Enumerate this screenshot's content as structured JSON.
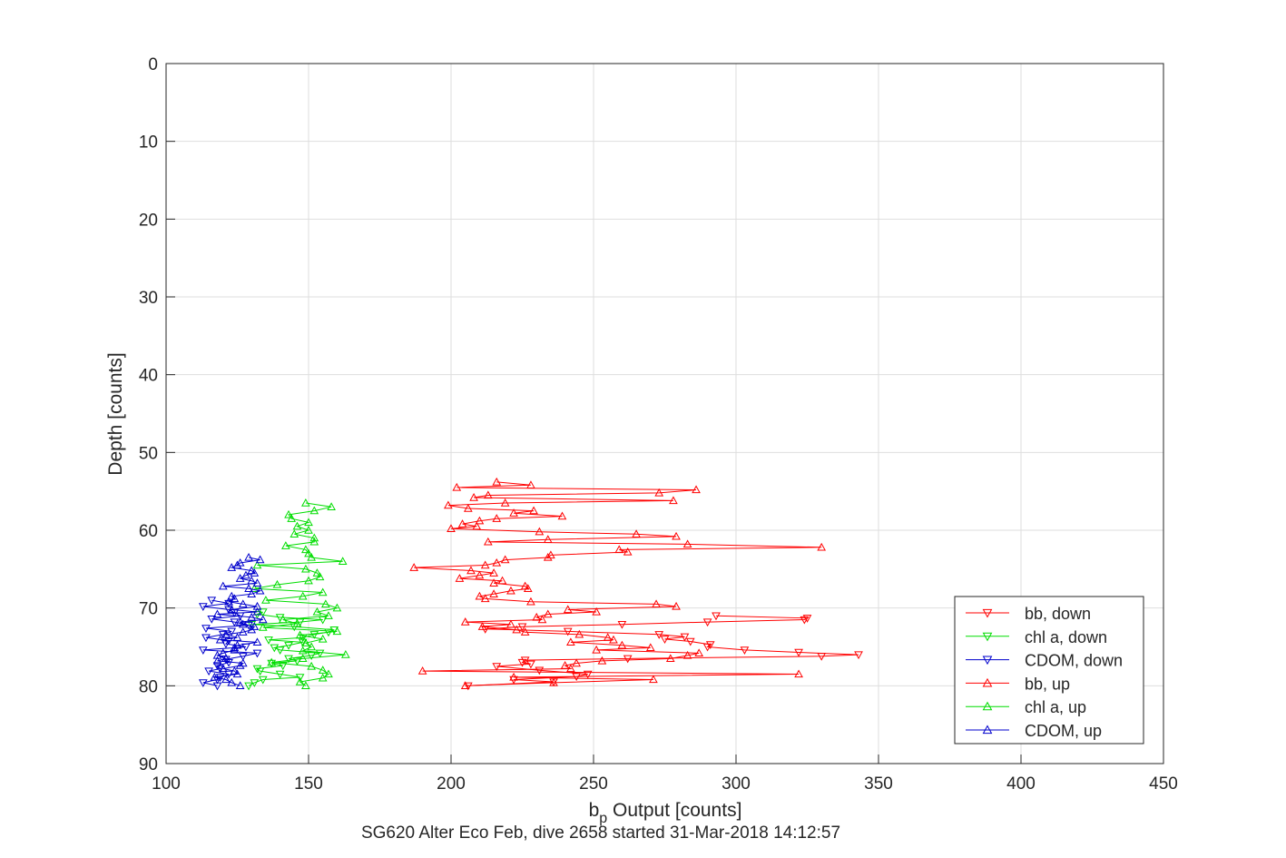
{
  "chart_data": {
    "type": "line",
    "title": "",
    "caption": "SG620 Alter Eco Feb, dive 2658 started 31-Mar-2018 14:12:57",
    "xlabel_main": "b",
    "xlabel_sub": "p",
    "xlabel_rest": " Output [counts]",
    "ylabel": "Depth [counts]",
    "xlim": [
      100,
      450
    ],
    "ylim": [
      0,
      90
    ],
    "y_reversed": true,
    "grid": true,
    "legend_position": "lower-right",
    "x_ticks": [
      "100",
      "150",
      "200",
      "250",
      "300",
      "350",
      "400",
      "450"
    ],
    "y_ticks": [
      "0",
      "10",
      "20",
      "30",
      "40",
      "50",
      "60",
      "70",
      "80",
      "90"
    ],
    "series": [
      {
        "name": "bb, down",
        "color": "#ff0000",
        "marker": "triangle-down",
        "x": [
          206,
          236,
          222,
          244,
          248,
          231,
          216,
          228,
          225,
          226,
          262,
          330,
          343,
          322,
          303,
          290,
          291,
          284,
          275,
          282,
          273,
          241,
          212,
          225,
          260,
          290,
          324,
          325,
          293
        ],
        "y": [
          80.0,
          79.5,
          79.2,
          78.8,
          78.5,
          78.0,
          77.5,
          77.2,
          77.0,
          76.7,
          76.5,
          76.2,
          76.0,
          75.7,
          75.4,
          75.0,
          74.7,
          74.3,
          74.0,
          73.7,
          73.4,
          73.0,
          72.7,
          72.4,
          72.1,
          71.8,
          71.5,
          71.3,
          71.0
        ]
      },
      {
        "name": "chl a, down",
        "color": "#00dd00",
        "marker": "triangle-down",
        "x": [
          129,
          131,
          134,
          147,
          140,
          133,
          132,
          141,
          137,
          146,
          143,
          151,
          154,
          140,
          138,
          143,
          148,
          136,
          148,
          152,
          157,
          159,
          145,
          130,
          147,
          155,
          140,
          132,
          134
        ],
        "y": [
          80.0,
          79.6,
          79.2,
          78.9,
          78.5,
          78.1,
          77.8,
          77.4,
          77.1,
          76.8,
          76.5,
          76.1,
          75.8,
          75.4,
          75.1,
          74.8,
          74.4,
          74.1,
          73.8,
          73.4,
          73.1,
          72.8,
          72.4,
          72.1,
          71.8,
          71.5,
          71.2,
          70.8,
          70.5
        ]
      },
      {
        "name": "CDOM, down",
        "color": "#0000cc",
        "marker": "triangle-down",
        "x": [
          118,
          113,
          118,
          119,
          122,
          115,
          119,
          118,
          122,
          121,
          127,
          132,
          113,
          128,
          121,
          122,
          114,
          120,
          123,
          114,
          129,
          124,
          116,
          126,
          124,
          122,
          113,
          122,
          116
        ],
        "y": [
          80.0,
          79.6,
          79.2,
          78.9,
          78.5,
          78.1,
          77.8,
          77.4,
          77.0,
          76.6,
          76.2,
          75.8,
          75.4,
          75.0,
          74.6,
          74.2,
          73.8,
          73.4,
          73.0,
          72.6,
          72.2,
          71.8,
          71.4,
          71.0,
          70.6,
          70.2,
          69.8,
          69.4,
          69.0
        ]
      },
      {
        "name": "bb, up",
        "color": "#ff0000",
        "marker": "triangle-up",
        "x": [
          205,
          236,
          271,
          222,
          322,
          190,
          242,
          240,
          244,
          253,
          277,
          283,
          287,
          251,
          270,
          260,
          242,
          257,
          255,
          245,
          226,
          223,
          211,
          221,
          205,
          232,
          230,
          234,
          251,
          241,
          279,
          272,
          228,
          212,
          210,
          215,
          221,
          227,
          226,
          215,
          218,
          203,
          210,
          215,
          207,
          187,
          212,
          216,
          219,
          234,
          235,
          262,
          259,
          330,
          283,
          213,
          234,
          279,
          265,
          231,
          200,
          209,
          204,
          210,
          216,
          239,
          222,
          229,
          206,
          199,
          219,
          278,
          208,
          213,
          273,
          286,
          202,
          228,
          216
        ],
        "y": [
          80.0,
          79.6,
          79.2,
          78.9,
          78.5,
          78.1,
          77.8,
          77.4,
          77.1,
          76.8,
          76.5,
          76.1,
          75.8,
          75.4,
          75.1,
          74.8,
          74.4,
          74.1,
          73.8,
          73.4,
          73.1,
          72.8,
          72.4,
          72.1,
          71.8,
          71.5,
          71.2,
          70.8,
          70.5,
          70.2,
          69.8,
          69.5,
          69.2,
          68.8,
          68.5,
          68.2,
          67.8,
          67.5,
          67.2,
          66.8,
          66.5,
          66.2,
          65.8,
          65.5,
          65.2,
          64.8,
          64.5,
          64.2,
          63.8,
          63.5,
          63.2,
          62.8,
          62.5,
          62.2,
          61.8,
          61.5,
          61.2,
          60.8,
          60.5,
          60.2,
          59.8,
          59.5,
          59.2,
          58.8,
          58.5,
          58.2,
          57.8,
          57.5,
          57.2,
          56.8,
          56.5,
          56.2,
          55.8,
          55.5,
          55.2,
          54.8,
          54.5,
          54.2,
          53.8
        ]
      },
      {
        "name": "chl a, up",
        "color": "#00dd00",
        "marker": "triangle-up",
        "x": [
          149,
          147,
          155,
          157,
          155,
          151,
          137,
          148,
          163,
          148,
          151,
          149,
          155,
          147,
          160,
          134,
          146,
          141,
          157,
          153,
          160,
          156,
          135,
          148,
          155,
          131,
          139,
          150,
          154,
          153,
          149,
          132,
          162,
          151,
          150,
          149,
          142,
          152,
          152,
          145,
          150,
          146,
          150,
          144,
          143,
          152,
          158,
          149
        ],
        "y": [
          80.0,
          79.5,
          79.0,
          78.5,
          78.0,
          77.5,
          77.0,
          76.5,
          76.0,
          75.5,
          75.0,
          74.5,
          74.0,
          73.5,
          73.0,
          72.5,
          72.0,
          71.5,
          71.0,
          70.5,
          70.0,
          69.5,
          69.0,
          68.5,
          68.0,
          67.5,
          67.0,
          66.5,
          66.0,
          65.5,
          65.0,
          64.5,
          64.0,
          63.5,
          63.0,
          62.5,
          62.0,
          61.5,
          61.0,
          60.5,
          60.0,
          59.5,
          59.0,
          58.5,
          58.0,
          57.5,
          57.0,
          56.5
        ]
      },
      {
        "name": "CDOM, up",
        "color": "#0000cc",
        "marker": "triangle-up",
        "x": [
          126,
          123,
          121,
          117,
          125,
          124,
          120,
          126,
          127,
          118,
          121,
          118,
          120,
          124,
          124,
          125,
          132,
          119,
          125,
          121,
          127,
          130,
          131,
          127,
          126,
          134,
          130,
          118,
          132,
          123,
          132,
          127,
          122,
          124,
          123,
          130,
          133,
          129,
          120,
          132,
          130,
          126,
          128,
          131,
          130,
          123,
          125,
          126,
          133,
          129
        ],
        "y": [
          80.0,
          79.6,
          79.2,
          78.9,
          78.5,
          78.1,
          77.8,
          77.4,
          77.1,
          76.8,
          76.5,
          76.1,
          75.8,
          75.4,
          75.1,
          74.8,
          74.4,
          74.1,
          73.8,
          73.4,
          73.1,
          72.8,
          72.4,
          72.1,
          71.8,
          71.5,
          71.2,
          70.8,
          70.5,
          70.2,
          69.8,
          69.5,
          69.2,
          68.8,
          68.5,
          68.2,
          67.8,
          67.5,
          67.2,
          66.8,
          66.5,
          66.2,
          65.8,
          65.5,
          65.2,
          64.8,
          64.5,
          64.2,
          63.8,
          63.5
        ]
      }
    ]
  }
}
